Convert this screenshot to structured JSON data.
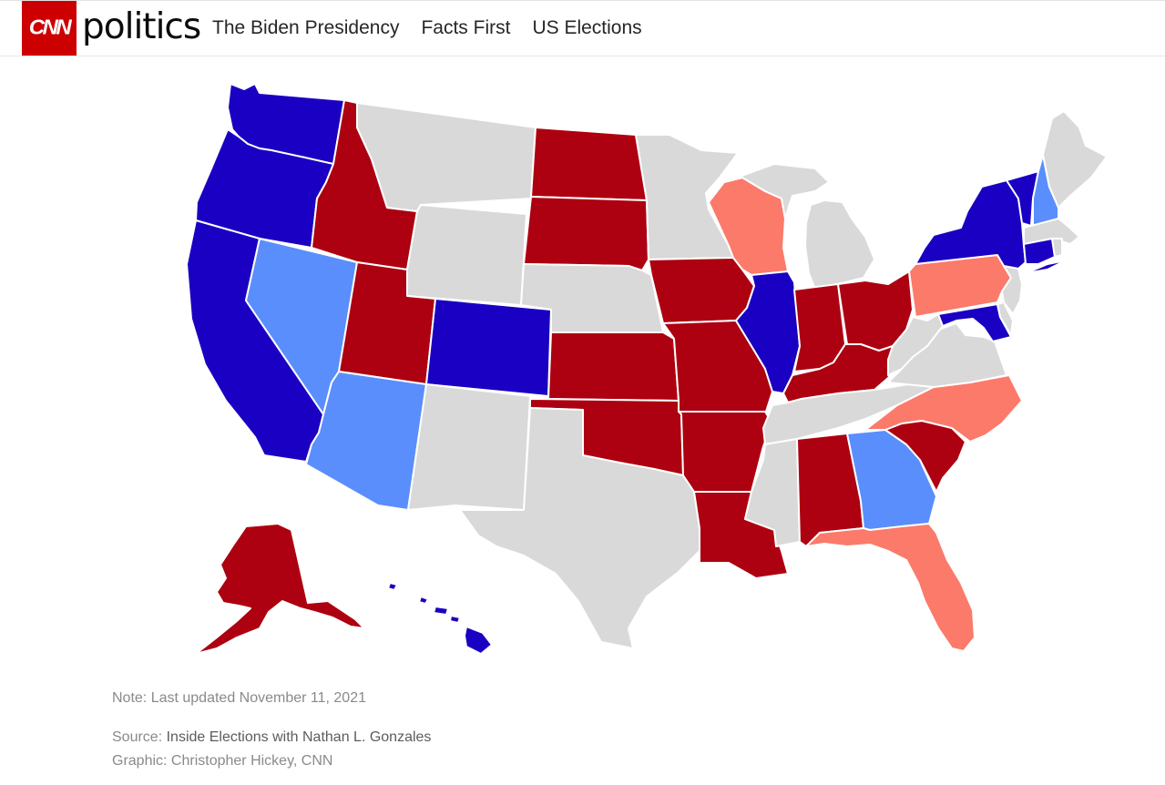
{
  "header": {
    "logo_text": "CNN",
    "section_title": "politics",
    "nav": [
      "The Biden Presidency",
      "Facts First",
      "US Elections"
    ]
  },
  "map": {
    "colors": {
      "solid_democratic": "#1a00c2",
      "lean_democratic": "#5a8efd",
      "solid_republican": "#ad0010",
      "lean_republican": "#fb7a6a",
      "no_race": "#d9d9d9"
    },
    "states": {
      "WA": "solid_democratic",
      "OR": "solid_democratic",
      "CA": "solid_democratic",
      "NV": "lean_democratic",
      "ID": "solid_republican",
      "MT": "no_race",
      "WY": "no_race",
      "UT": "solid_republican",
      "AZ": "lean_democratic",
      "CO": "solid_democratic",
      "NM": "no_race",
      "ND": "solid_republican",
      "SD": "solid_republican",
      "NE": "no_race",
      "KS": "solid_republican",
      "OK": "solid_republican",
      "TX": "no_race",
      "MN": "no_race",
      "IA": "solid_republican",
      "MO": "solid_republican",
      "AR": "solid_republican",
      "LA": "solid_republican",
      "WI": "lean_republican",
      "IL": "solid_democratic",
      "MI": "no_race",
      "IN": "solid_republican",
      "OH": "solid_republican",
      "KY": "solid_republican",
      "TN": "no_race",
      "MS": "no_race",
      "AL": "solid_republican",
      "GA": "lean_democratic",
      "FL": "lean_republican",
      "SC": "solid_republican",
      "NC": "lean_republican",
      "VA": "no_race",
      "WV": "no_race",
      "PA": "lean_republican",
      "NY": "solid_democratic",
      "VT": "solid_democratic",
      "NH": "lean_democratic",
      "ME": "no_race",
      "MA": "no_race",
      "CT": "solid_democratic",
      "RI": "no_race",
      "NJ": "no_race",
      "DE": "no_race",
      "MD": "solid_democratic",
      "AK": "solid_republican",
      "HI": "solid_democratic"
    }
  },
  "footer": {
    "note": "Note: Last updated November 11, 2021",
    "source_label": "Source: ",
    "source_name": "Inside Elections with Nathan L. Gonzales",
    "graphic": "Graphic: Christopher Hickey, CNN"
  }
}
